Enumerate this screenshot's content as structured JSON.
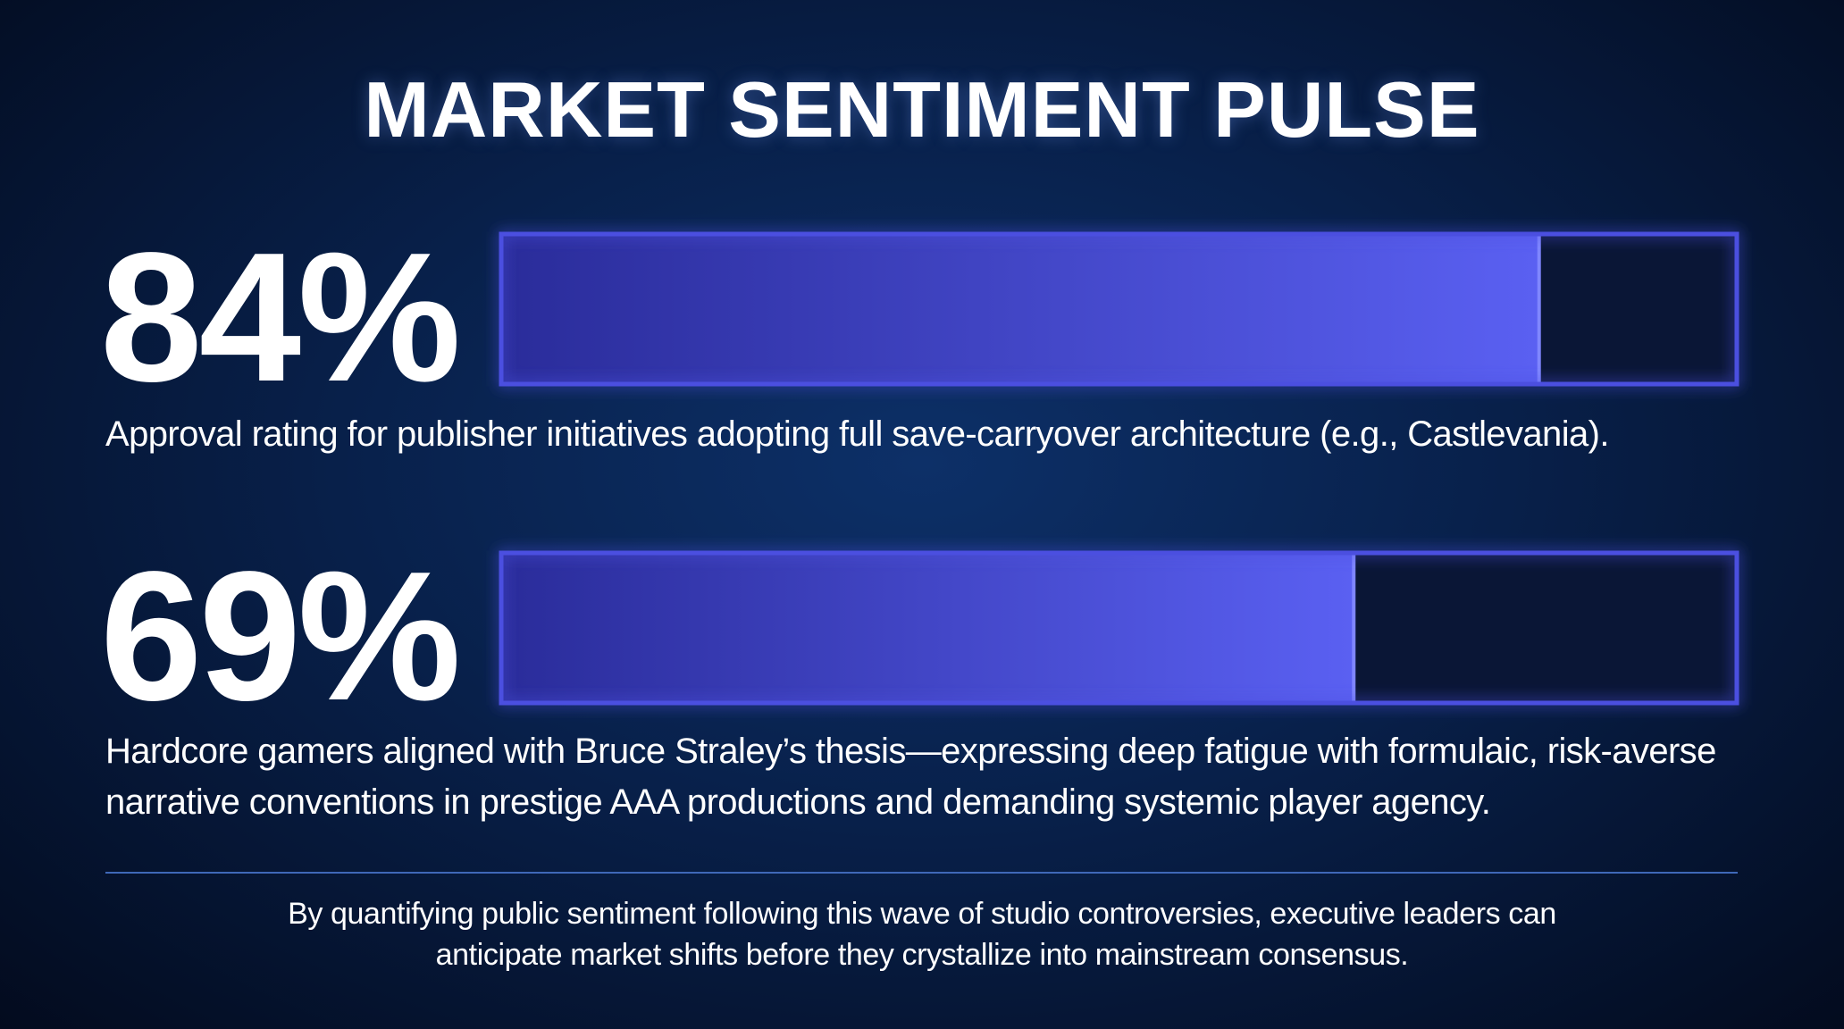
{
  "chart_data": {
    "type": "bar",
    "title": "MARKET SENTIMENT PULSE",
    "categories": [
      "Approval rating for publisher initiatives adopting full save-carryover architecture (e.g., Castlevania).",
      "Hardcore gamers aligned with Bruce Straley’s thesis—expressing deep fatigue with formulaic, risk-averse narrative conventions in prestige AAA productions and demanding systemic player agency."
    ],
    "values": [
      84,
      69
    ],
    "value_labels": [
      "84%",
      "69%"
    ],
    "xlim": [
      0,
      100
    ],
    "color": "#4b50e0",
    "annotation": "By quantifying public sentiment following this wave of studio controversies, executive leaders can anticipate market shifts before they crystallize into mainstream consensus."
  }
}
